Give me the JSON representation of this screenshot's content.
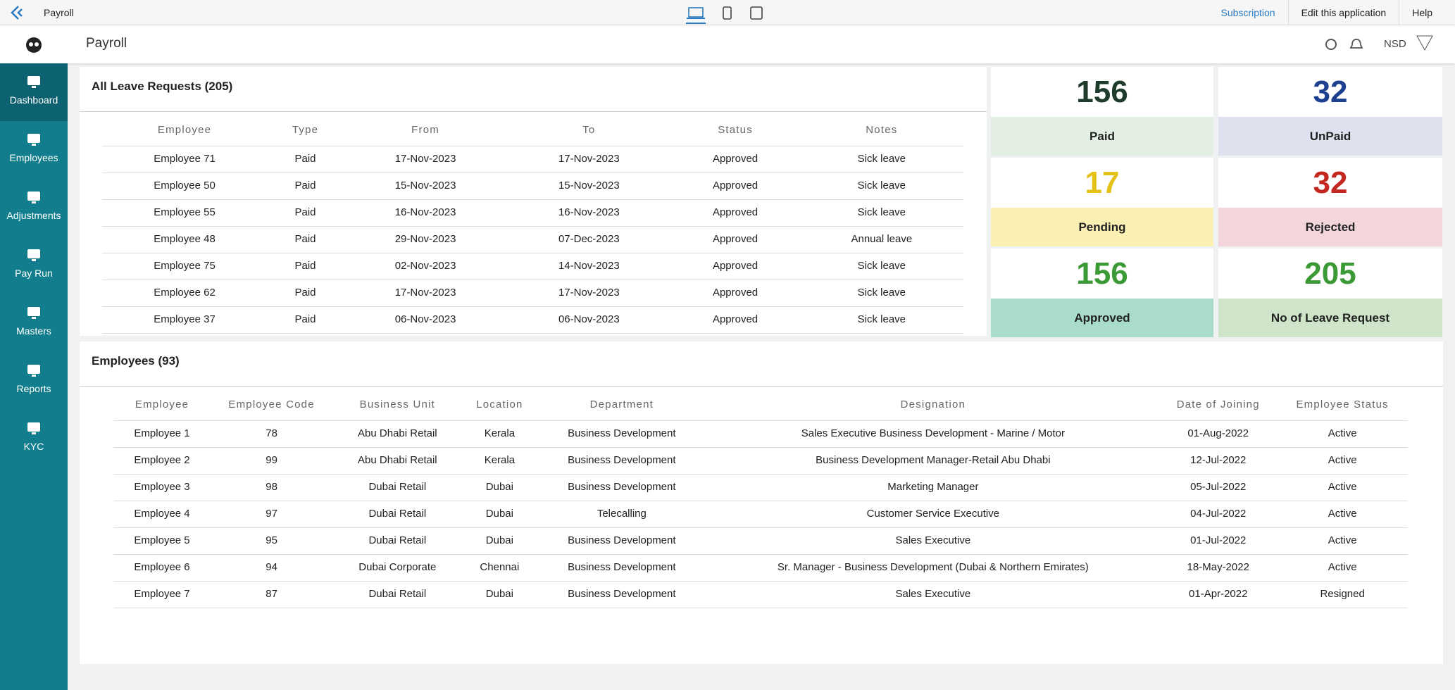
{
  "topbar": {
    "app_name": "Payroll",
    "links": [
      "Subscription",
      "Edit this application",
      "Help"
    ]
  },
  "header": {
    "title": "Payroll",
    "user": "NSD"
  },
  "sidebar": {
    "items": [
      "Dashboard",
      "Employees",
      "Adjustments",
      "Pay Run",
      "Masters",
      "Reports",
      "KYC"
    ]
  },
  "leave_requests": {
    "title": "All Leave Requests (205)",
    "columns": [
      "Employee",
      "Type",
      "From",
      "To",
      "Status",
      "Notes"
    ],
    "rows": [
      [
        "Employee 71",
        "Paid",
        "17-Nov-2023",
        "17-Nov-2023",
        "Approved",
        "Sick leave"
      ],
      [
        "Employee 50",
        "Paid",
        "15-Nov-2023",
        "15-Nov-2023",
        "Approved",
        "Sick leave"
      ],
      [
        "Employee 55",
        "Paid",
        "16-Nov-2023",
        "16-Nov-2023",
        "Approved",
        "Sick leave"
      ],
      [
        "Employee 48",
        "Paid",
        "29-Nov-2023",
        "07-Dec-2023",
        "Approved",
        "Annual leave"
      ],
      [
        "Employee 75",
        "Paid",
        "02-Nov-2023",
        "14-Nov-2023",
        "Approved",
        "Sick leave"
      ],
      [
        "Employee 62",
        "Paid",
        "17-Nov-2023",
        "17-Nov-2023",
        "Approved",
        "Sick leave"
      ],
      [
        "Employee 37",
        "Paid",
        "06-Nov-2023",
        "06-Nov-2023",
        "Approved",
        "Sick leave"
      ]
    ]
  },
  "stats": [
    {
      "value": 156,
      "label": "Paid"
    },
    {
      "value": 32,
      "label": "UnPaid"
    },
    {
      "value": 17,
      "label": "Pending"
    },
    {
      "value": 32,
      "label": "Rejected"
    },
    {
      "value": 156,
      "label": "Approved"
    },
    {
      "value": 205,
      "label": "No of Leave Request"
    }
  ],
  "employees": {
    "title": "Employees (93)",
    "columns": [
      "Employee",
      "Employee Code",
      "Business Unit",
      "Location",
      "Department",
      "Designation",
      "Date of Joining",
      "Employee Status"
    ],
    "rows": [
      [
        "Employee 1",
        "78",
        "Abu Dhabi Retail",
        "Kerala",
        "Business Development",
        "Sales Executive Business Development - Marine / Motor",
        "01-Aug-2022",
        "Active"
      ],
      [
        "Employee 2",
        "99",
        "Abu Dhabi Retail",
        "Kerala",
        "Business Development",
        "Business Development Manager-Retail Abu Dhabi",
        "12-Jul-2022",
        "Active"
      ],
      [
        "Employee 3",
        "98",
        "Dubai Retail",
        "Dubai",
        "Business Development",
        "Marketing Manager",
        "05-Jul-2022",
        "Active"
      ],
      [
        "Employee 4",
        "97",
        "Dubai Retail",
        "Dubai",
        "Telecalling",
        "Customer Service Executive",
        "04-Jul-2022",
        "Active"
      ],
      [
        "Employee 5",
        "95",
        "Dubai Retail",
        "Dubai",
        "Business Development",
        "Sales Executive",
        "01-Jul-2022",
        "Active"
      ],
      [
        "Employee 6",
        "94",
        "Dubai Corporate",
        "Chennai",
        "Business Development",
        "Sr. Manager - Business Development (Dubai & Northern Emirates)",
        "18-May-2022",
        "Active"
      ],
      [
        "Employee 7",
        "87",
        "Dubai Retail",
        "Dubai",
        "Business Development",
        "Sales Executive",
        "01-Apr-2022",
        "Resigned"
      ]
    ]
  }
}
